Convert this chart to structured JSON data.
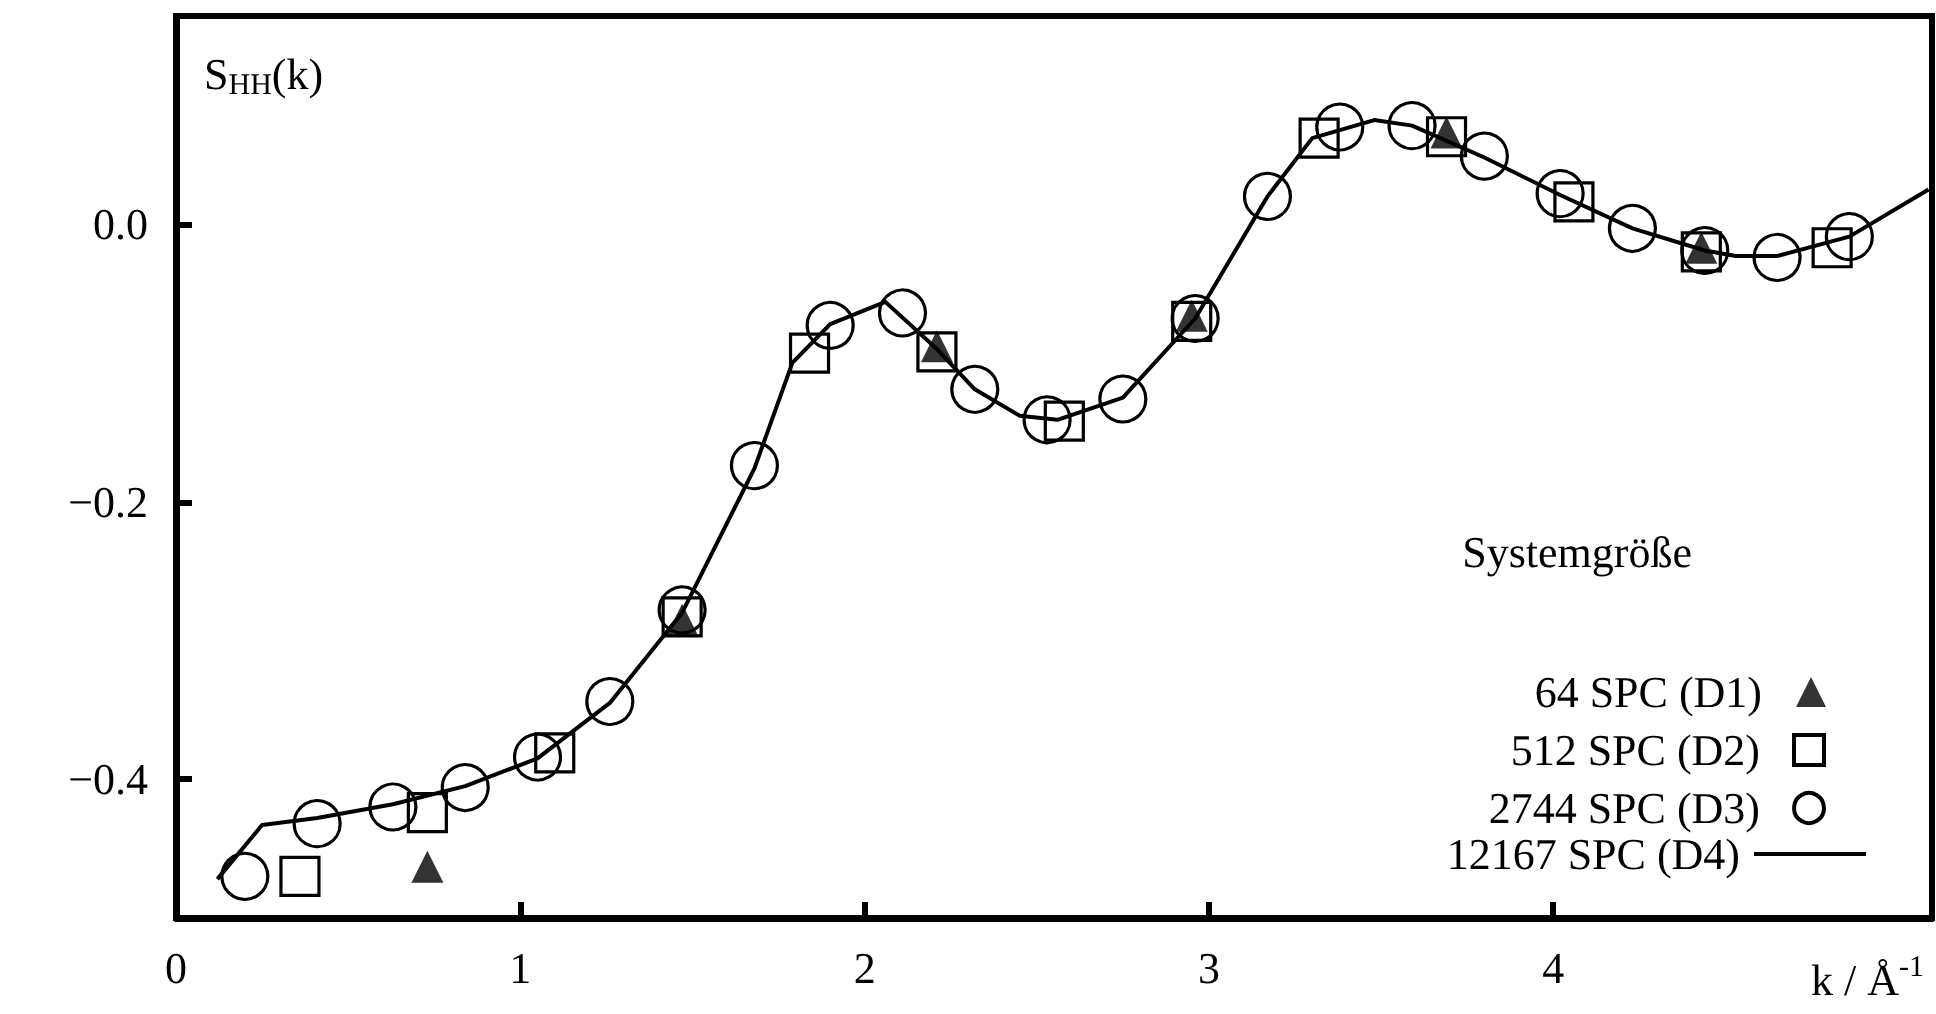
{
  "chart_data": {
    "type": "scatter",
    "ylabel": "S$_{HH}$(k)",
    "xlabel": "k / Å$^{-1}$",
    "legend_title": "Systemgröße",
    "legend": "bottom right",
    "grid": false,
    "xlim": [
      0,
      5.1
    ],
    "ylim": [
      -0.5,
      0.15
    ],
    "xticks": [
      0,
      1,
      2,
      3,
      4
    ],
    "yticks": [
      {
        "value": 0,
        "label": "0.0"
      },
      {
        "value": -0.2,
        "label": "−0.2"
      },
      {
        "value": -0.4,
        "label": "−0.4"
      }
    ],
    "series": [
      {
        "name": "64 SPC (D1)",
        "marker": "triangle",
        "color": "#000000",
        "x": [
          0.73,
          1.47,
          2.21,
          2.95,
          3.69,
          4.43
        ],
        "values": [
          -0.463,
          -0.285,
          -0.088,
          -0.066,
          0.066,
          -0.017
        ]
      },
      {
        "name": "512 SPC (D2)",
        "marker": "square",
        "color": "#000000",
        "x": [
          0.36,
          0.73,
          1.1,
          1.47,
          1.84,
          2.21,
          2.58,
          2.95,
          3.32,
          3.69,
          4.06,
          4.43,
          4.81
        ],
        "values": [
          -0.47,
          -0.424,
          -0.381,
          -0.283,
          -0.093,
          -0.092,
          -0.142,
          -0.07,
          0.062,
          0.063,
          0.016,
          -0.02,
          -0.017
        ]
      },
      {
        "name": "2744 SPC (D3)",
        "marker": "circle",
        "color": "#000000",
        "x": [
          0.2,
          0.41,
          0.63,
          0.84,
          1.05,
          1.26,
          1.47,
          1.68,
          1.9,
          2.11,
          2.32,
          2.53,
          2.75,
          2.96,
          3.17,
          3.38,
          3.59,
          3.8,
          4.02,
          4.23,
          4.44,
          4.65,
          4.86
        ],
        "values": [
          -0.47,
          -0.432,
          -0.42,
          -0.406,
          -0.384,
          -0.344,
          -0.278,
          -0.174,
          -0.073,
          -0.064,
          -0.119,
          -0.141,
          -0.126,
          -0.068,
          0.02,
          0.07,
          0.071,
          0.049,
          0.022,
          -0.003,
          -0.019,
          -0.024,
          -0.009
        ]
      },
      {
        "name": "12167 SPC (D4)",
        "type": "line",
        "marker": "none",
        "line_style": "solid",
        "color": "#000000",
        "x": [
          0.12,
          0.25,
          0.41,
          0.63,
          0.84,
          1.05,
          1.26,
          1.47,
          1.68,
          1.79,
          1.9,
          2.06,
          2.21,
          2.32,
          2.45,
          2.56,
          2.75,
          2.96,
          3.17,
          3.3,
          3.48,
          3.59,
          3.8,
          4.02,
          4.23,
          4.44,
          4.53,
          4.65,
          4.86,
          5.09
        ],
        "values": [
          -0.472,
          -0.433,
          -0.428,
          -0.418,
          -0.405,
          -0.385,
          -0.345,
          -0.28,
          -0.176,
          -0.1,
          -0.072,
          -0.056,
          -0.09,
          -0.119,
          -0.138,
          -0.141,
          -0.125,
          -0.068,
          0.02,
          0.062,
          0.075,
          0.071,
          0.048,
          0.021,
          -0.003,
          -0.019,
          -0.023,
          -0.023,
          -0.009,
          0.025
        ]
      }
    ]
  }
}
